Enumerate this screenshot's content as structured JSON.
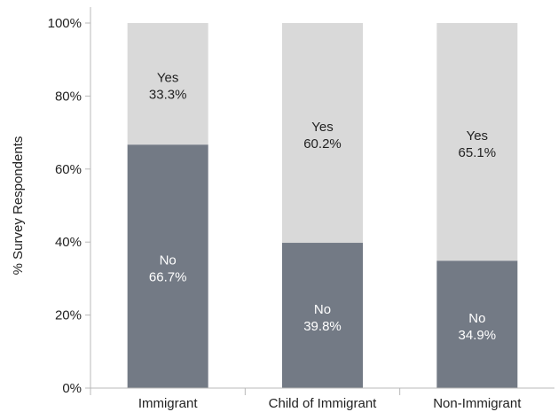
{
  "chart_data": {
    "type": "bar",
    "stacked": true,
    "categories": [
      "Immigrant",
      "Child of Immigrant",
      "Non-Immigrant"
    ],
    "series": [
      {
        "name": "No",
        "values": [
          66.7,
          39.8,
          34.9
        ],
        "labels": [
          "66.7%",
          "39.8%",
          "34.9%"
        ],
        "color": "#737a85",
        "label_color": "#ffffff"
      },
      {
        "name": "Yes",
        "values": [
          33.3,
          60.2,
          65.1
        ],
        "labels": [
          "33.3%",
          "60.2%",
          "65.1%"
        ],
        "color": "#d9d9d9",
        "label_color": "#222222"
      }
    ],
    "xlabel": "",
    "ylabel": "% Survey Respondents",
    "ylim": [
      0,
      100
    ],
    "yticks": [
      0,
      20,
      40,
      60,
      80,
      100
    ],
    "ytick_labels": [
      "0%",
      "20%",
      "40%",
      "60%",
      "80%",
      "100%"
    ],
    "grid": false,
    "legend": "none"
  }
}
